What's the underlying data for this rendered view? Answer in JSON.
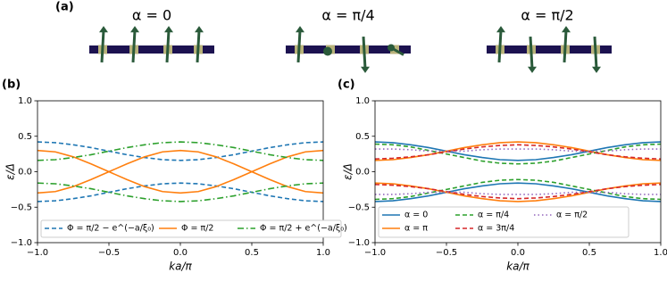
{
  "panel_labels": [
    "(a)",
    "(b)",
    "(c)"
  ],
  "diagrams": [
    {
      "label": "α = 0"
    },
    {
      "label": "α = π/4"
    },
    {
      "label": "α = π/2"
    }
  ],
  "chart_data": [
    {
      "type": "line",
      "xlabel": "ka/π",
      "ylabel": "ε/Δ",
      "x": [
        -1,
        -0.875,
        -0.75,
        -0.625,
        -0.5,
        -0.375,
        -0.25,
        -0.125,
        0,
        0.125,
        0.25,
        0.375,
        0.5,
        0.625,
        0.75,
        0.875,
        1
      ],
      "xlim": [
        -1,
        1
      ],
      "ylim": [
        -1,
        1
      ],
      "xticks": [
        {
          "value": -1,
          "label": "−1.0"
        },
        {
          "value": -0.5,
          "label": "−0.5"
        },
        {
          "value": 0,
          "label": "0.0"
        },
        {
          "value": 0.5,
          "label": "0.5"
        },
        {
          "value": 1,
          "label": "1.0"
        }
      ],
      "yticks": [
        {
          "value": -1,
          "label": "−1.0"
        },
        {
          "value": -0.5,
          "label": "−0.5"
        },
        {
          "value": 0,
          "label": "0.0"
        },
        {
          "value": 0.5,
          "label": "0.5"
        },
        {
          "value": 1,
          "label": "1.0"
        }
      ],
      "series": [
        {
          "name": "Φ = π/2 − e^(−a/ξ₀)",
          "color": "#1f77b4",
          "dash": "5,3",
          "values": [
            0.42,
            0.41,
            0.38,
            0.34,
            0.29,
            0.24,
            0.2,
            0.17,
            0.16,
            0.17,
            0.2,
            0.24,
            0.29,
            0.34,
            0.38,
            0.41,
            0.42
          ],
          "values_lower": [
            -0.42,
            -0.41,
            -0.38,
            -0.34,
            -0.29,
            -0.24,
            -0.2,
            -0.17,
            -0.16,
            -0.17,
            -0.2,
            -0.24,
            -0.29,
            -0.34,
            -0.38,
            -0.41,
            -0.42
          ]
        },
        {
          "name": "Φ = π/2",
          "color": "#ff7f0e",
          "dash": "none",
          "values": [
            -0.3,
            -0.28,
            -0.21,
            -0.11,
            0,
            0.11,
            0.21,
            0.28,
            0.3,
            0.28,
            0.21,
            0.11,
            0,
            -0.11,
            -0.21,
            -0.28,
            -0.3
          ],
          "values_lower": [
            0.3,
            0.28,
            0.21,
            0.11,
            0,
            -0.11,
            -0.21,
            -0.28,
            -0.3,
            -0.28,
            -0.21,
            -0.11,
            0,
            0.11,
            0.21,
            0.28,
            0.3
          ]
        },
        {
          "name": "Φ = π/2 + e^(−a/ξ₀)",
          "color": "#2ca02c",
          "dash": "7,3,1.5,3",
          "values": [
            0.16,
            0.17,
            0.2,
            0.24,
            0.29,
            0.34,
            0.38,
            0.41,
            0.42,
            0.41,
            0.38,
            0.34,
            0.29,
            0.24,
            0.2,
            0.17,
            0.16
          ],
          "values_lower": [
            -0.16,
            -0.17,
            -0.2,
            -0.24,
            -0.29,
            -0.34,
            -0.38,
            -0.41,
            -0.42,
            -0.41,
            -0.38,
            -0.34,
            -0.29,
            -0.24,
            -0.2,
            -0.17,
            -0.16
          ]
        }
      ]
    },
    {
      "type": "line",
      "xlabel": "ka/π",
      "ylabel": "ε/Δ",
      "x": [
        -1,
        -0.875,
        -0.75,
        -0.625,
        -0.5,
        -0.375,
        -0.25,
        -0.125,
        0,
        0.125,
        0.25,
        0.375,
        0.5,
        0.625,
        0.75,
        0.875,
        1
      ],
      "xlim": [
        -1,
        1
      ],
      "ylim": [
        -1,
        1
      ],
      "xticks": [
        {
          "value": -1,
          "label": "−1.0"
        },
        {
          "value": -0.5,
          "label": "−0.5"
        },
        {
          "value": 0,
          "label": "0.0"
        },
        {
          "value": 0.5,
          "label": "0.5"
        },
        {
          "value": 1,
          "label": "1.0"
        }
      ],
      "yticks": [
        {
          "value": -1,
          "label": "−1.0"
        },
        {
          "value": -0.5,
          "label": "−0.5"
        },
        {
          "value": 0,
          "label": "0.0"
        },
        {
          "value": 0.5,
          "label": "0.5"
        },
        {
          "value": 1,
          "label": "1.0"
        }
      ],
      "series": [
        {
          "name": "α = 0",
          "color": "#1f77b4",
          "dash": "none",
          "values": [
            0.42,
            0.41,
            0.38,
            0.34,
            0.29,
            0.24,
            0.2,
            0.17,
            0.16,
            0.17,
            0.2,
            0.24,
            0.29,
            0.34,
            0.38,
            0.41,
            0.42
          ],
          "values_lower": [
            -0.42,
            -0.41,
            -0.38,
            -0.34,
            -0.29,
            -0.24,
            -0.2,
            -0.17,
            -0.16,
            -0.17,
            -0.2,
            -0.24,
            -0.29,
            -0.34,
            -0.38,
            -0.41,
            -0.42
          ]
        },
        {
          "name": "α = π",
          "color": "#ff7f0e",
          "dash": "none",
          "values": [
            0.16,
            0.17,
            0.2,
            0.24,
            0.29,
            0.34,
            0.38,
            0.41,
            0.42,
            0.41,
            0.38,
            0.34,
            0.29,
            0.24,
            0.2,
            0.17,
            0.16
          ],
          "values_lower": [
            -0.16,
            -0.17,
            -0.2,
            -0.24,
            -0.29,
            -0.34,
            -0.38,
            -0.41,
            -0.42,
            -0.41,
            -0.38,
            -0.34,
            -0.29,
            -0.24,
            -0.2,
            -0.17,
            -0.16
          ]
        },
        {
          "name": "α = π/4",
          "color": "#2ca02c",
          "dash": "5,3",
          "values": [
            0.39,
            0.38,
            0.35,
            0.3,
            0.25,
            0.2,
            0.15,
            0.12,
            0.11,
            0.12,
            0.15,
            0.2,
            0.25,
            0.3,
            0.35,
            0.38,
            0.39
          ],
          "values_lower": [
            -0.39,
            -0.38,
            -0.35,
            -0.3,
            -0.25,
            -0.2,
            -0.15,
            -0.12,
            -0.11,
            -0.12,
            -0.15,
            -0.2,
            -0.25,
            -0.3,
            -0.35,
            -0.38,
            -0.39
          ]
        },
        {
          "name": "α = 3π/4",
          "color": "#d62728",
          "dash": "5,3",
          "values": [
            0.18,
            0.19,
            0.21,
            0.24,
            0.28,
            0.32,
            0.35,
            0.37,
            0.38,
            0.37,
            0.35,
            0.32,
            0.28,
            0.24,
            0.21,
            0.19,
            0.18
          ],
          "values_lower": [
            -0.18,
            -0.19,
            -0.21,
            -0.24,
            -0.28,
            -0.32,
            -0.35,
            -0.37,
            -0.38,
            -0.37,
            -0.35,
            -0.32,
            -0.28,
            -0.24,
            -0.21,
            -0.19,
            -0.18
          ]
        },
        {
          "name": "α = π/2",
          "color": "#9467bd",
          "dash": "1.5,3",
          "values": [
            0.32,
            0.32,
            0.31,
            0.29,
            0.29,
            0.29,
            0.31,
            0.32,
            0.32,
            0.32,
            0.31,
            0.29,
            0.29,
            0.29,
            0.31,
            0.32,
            0.32
          ],
          "values_lower": [
            -0.32,
            -0.32,
            -0.31,
            -0.29,
            -0.29,
            -0.29,
            -0.31,
            -0.32,
            -0.32,
            -0.32,
            -0.31,
            -0.29,
            -0.29,
            -0.29,
            -0.31,
            -0.32,
            -0.32
          ]
        }
      ]
    }
  ]
}
